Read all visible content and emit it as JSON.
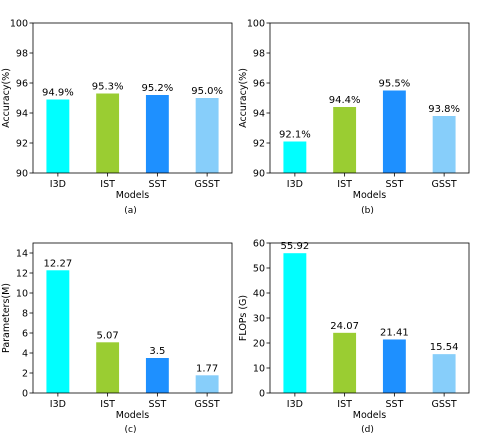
{
  "chart_data": [
    {
      "type": "bar",
      "caption": "(a)",
      "xlabel": "Models",
      "ylabel": "Accuracy(%)",
      "ylim": [
        90,
        100
      ],
      "yticks": [
        "90",
        "92",
        "94",
        "96",
        "98",
        "100"
      ],
      "categories": [
        "I3D",
        "IST",
        "SST",
        "GSST"
      ],
      "values": [
        94.9,
        95.3,
        95.2,
        95.0
      ],
      "value_labels": [
        "94.9%",
        "95.3%",
        "95.2%",
        "95.0%"
      ],
      "colors": [
        "#00ffff",
        "#9acd32",
        "#1e90ff",
        "#87cefa"
      ],
      "grid": false
    },
    {
      "type": "bar",
      "caption": "(b)",
      "xlabel": "Models",
      "ylabel": "Accuracy(%)",
      "ylim": [
        90,
        100
      ],
      "yticks": [
        "90",
        "92",
        "94",
        "96",
        "98",
        "100"
      ],
      "categories": [
        "I3D",
        "IST",
        "SST",
        "GSST"
      ],
      "values": [
        92.1,
        94.4,
        95.5,
        93.8
      ],
      "value_labels": [
        "92.1%",
        "94.4%",
        "95.5%",
        "93.8%"
      ],
      "colors": [
        "#00ffff",
        "#9acd32",
        "#1e90ff",
        "#87cefa"
      ],
      "grid": false
    },
    {
      "type": "bar",
      "caption": "(c)",
      "xlabel": "Models",
      "ylabel": "Parameters(M)",
      "ylim": [
        0,
        15
      ],
      "yticks": [
        "0",
        "2",
        "4",
        "6",
        "8",
        "10",
        "12",
        "14"
      ],
      "categories": [
        "I3D",
        "IST",
        "SST",
        "GSST"
      ],
      "values": [
        12.27,
        5.07,
        3.5,
        1.77
      ],
      "value_labels": [
        "12.27",
        "5.07",
        "3.5",
        "1.77"
      ],
      "colors": [
        "#00ffff",
        "#9acd32",
        "#1e90ff",
        "#87cefa"
      ],
      "grid": false
    },
    {
      "type": "bar",
      "caption": "(d)",
      "xlabel": "Models",
      "ylabel": "FLOPs (G)",
      "ylim": [
        0,
        60
      ],
      "yticks": [
        "0",
        "10",
        "20",
        "30",
        "40",
        "50",
        "60"
      ],
      "categories": [
        "I3D",
        "IST",
        "SST",
        "GSST"
      ],
      "values": [
        55.92,
        24.07,
        21.41,
        15.54
      ],
      "value_labels": [
        "55.92",
        "24.07",
        "21.41",
        "15.54"
      ],
      "colors": [
        "#00ffff",
        "#9acd32",
        "#1e90ff",
        "#87cefa"
      ],
      "grid": false
    }
  ]
}
